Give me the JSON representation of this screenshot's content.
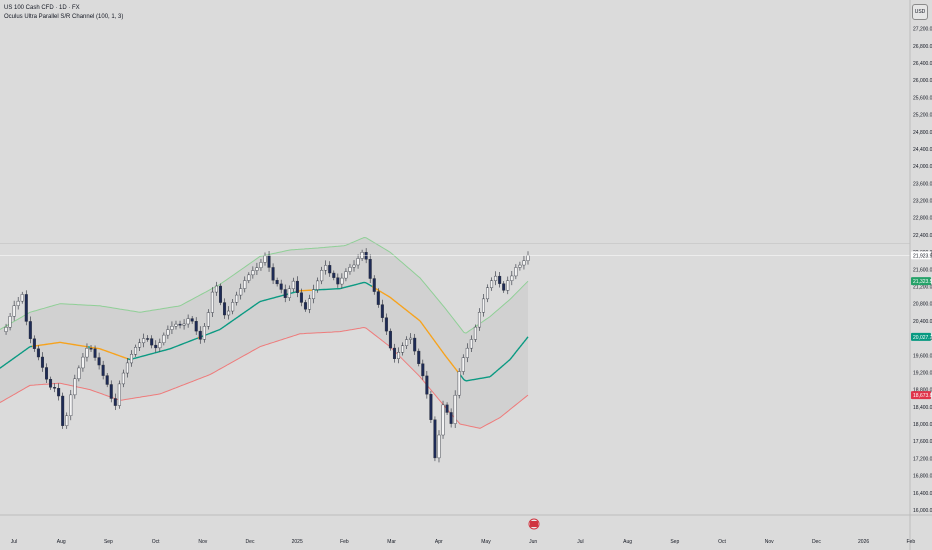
{
  "header": {
    "symbol_line": "US 100 Cash CFD · 1D · FX",
    "indicator_line": "Oculus Ultra Parallel S/R Channel (100, 1, 3)",
    "currency": "USD"
  },
  "colors": {
    "background": "#dbdbdb",
    "candle_up": "#f4f4f4",
    "candle_down": "#1e2b56",
    "candle_border": "#2a2e39",
    "upper_band": "#8fcf96",
    "lower_band": "#ee7b7b",
    "midline_above": "#089981",
    "midline_below": "#f7a21b",
    "fill": "#cfcfcf",
    "price_tag": "#ffffff",
    "upper_tag": "#26a269",
    "mid_tag": "#089981",
    "lower_tag": "#e0344a"
  },
  "chart_data": {
    "type": "candlestick",
    "y_axis": {
      "min": 16000,
      "max": 27400,
      "ticks": [
        "27,200.00",
        "26,800.00",
        "26,400.00",
        "26,000.00",
        "25,600.00",
        "25,200.00",
        "24,800.00",
        "24,400.00",
        "24,000.00",
        "23,600.00",
        "23,200.00",
        "22,800.00",
        "22,400.00",
        "22,000.00",
        "21,600.00",
        "21,200.00",
        "20,800.00",
        "20,400.00",
        "20,000.00",
        "19,600.00",
        "19,200.00",
        "18,800.00",
        "18,400.00",
        "18,000.00",
        "17,600.00",
        "17,200.00",
        "16,800.00",
        "16,400.00",
        "16,000.00"
      ]
    },
    "x_axis": {
      "labels": [
        "Jul",
        "Aug",
        "Sep",
        "Oct",
        "Nov",
        "Dec",
        "2025",
        "Feb",
        "Mar",
        "Apr",
        "May",
        "Jun",
        "Jul",
        "Aug",
        "Sep",
        "Oct",
        "Nov",
        "Dec",
        "2026",
        "Feb"
      ]
    },
    "price_tags": [
      {
        "label": "21,923.95",
        "value": 21923.95,
        "kind": "price"
      },
      {
        "label": "21,323.54",
        "value": 21323.54,
        "kind": "upper"
      },
      {
        "label": "20,027.71",
        "value": 20027.71,
        "kind": "mid"
      },
      {
        "label": "18,673.84",
        "value": 18673.84,
        "kind": "lower"
      }
    ],
    "series": [
      {
        "kind": "candles",
        "path": [
          [
            0,
            20100
          ],
          [
            6,
            20250
          ],
          [
            10,
            20500
          ],
          [
            14,
            20750
          ],
          [
            18,
            20850
          ],
          [
            22,
            21050
          ],
          [
            25,
            20600
          ],
          [
            28,
            20100
          ],
          [
            32,
            19900
          ],
          [
            36,
            19650
          ],
          [
            40,
            19500
          ],
          [
            44,
            19200
          ],
          [
            48,
            18950
          ],
          [
            52,
            18800
          ],
          [
            56,
            18850
          ],
          [
            60,
            18550
          ],
          [
            62,
            18100
          ],
          [
            64,
            17700
          ],
          [
            66,
            18100
          ],
          [
            70,
            18600
          ],
          [
            74,
            19000
          ],
          [
            78,
            19250
          ],
          [
            82,
            19500
          ],
          [
            86,
            19750
          ],
          [
            90,
            19800
          ],
          [
            94,
            19600
          ],
          [
            98,
            19400
          ],
          [
            102,
            19300
          ],
          [
            104,
            19000
          ],
          [
            108,
            18900
          ],
          [
            110,
            18750
          ],
          [
            112,
            18500
          ],
          [
            114,
            18300
          ],
          [
            116,
            18500
          ],
          [
            118,
            18850
          ],
          [
            122,
            19100
          ],
          [
            126,
            19350
          ],
          [
            130,
            19550
          ],
          [
            134,
            19750
          ],
          [
            138,
            19850
          ],
          [
            142,
            19950
          ],
          [
            146,
            20050
          ],
          [
            150,
            19900
          ],
          [
            154,
            19750
          ],
          [
            158,
            19800
          ],
          [
            162,
            20000
          ],
          [
            166,
            20150
          ],
          [
            170,
            20250
          ],
          [
            174,
            20300
          ],
          [
            178,
            20350
          ],
          [
            182,
            20250
          ],
          [
            186,
            20400
          ],
          [
            190,
            20500
          ],
          [
            194,
            20300
          ],
          [
            198,
            20050
          ],
          [
            200,
            19950
          ],
          [
            204,
            20250
          ],
          [
            208,
            20550
          ],
          [
            212,
            21050
          ],
          [
            216,
            21250
          ],
          [
            220,
            20900
          ],
          [
            222,
            20600
          ],
          [
            226,
            20500
          ],
          [
            230,
            20700
          ],
          [
            234,
            20900
          ],
          [
            238,
            21050
          ],
          [
            242,
            21200
          ],
          [
            246,
            21400
          ],
          [
            250,
            21500
          ],
          [
            254,
            21600
          ],
          [
            258,
            21650
          ],
          [
            262,
            21800
          ],
          [
            266,
            21950
          ],
          [
            268,
            21800
          ],
          [
            270,
            21500
          ],
          [
            274,
            21300
          ],
          [
            278,
            21250
          ],
          [
            282,
            21100
          ],
          [
            286,
            20900
          ],
          [
            290,
            21200
          ],
          [
            294,
            21350
          ],
          [
            298,
            21000
          ],
          [
            302,
            20800
          ],
          [
            306,
            20650
          ],
          [
            310,
            20950
          ],
          [
            314,
            21150
          ],
          [
            318,
            21350
          ],
          [
            322,
            21600
          ],
          [
            326,
            21700
          ],
          [
            330,
            21500
          ],
          [
            334,
            21400
          ],
          [
            338,
            21250
          ],
          [
            342,
            21400
          ],
          [
            346,
            21550
          ],
          [
            350,
            21650
          ],
          [
            354,
            21700
          ],
          [
            358,
            21850
          ],
          [
            362,
            22000
          ],
          [
            366,
            21850
          ],
          [
            370,
            21400
          ],
          [
            374,
            21100
          ],
          [
            378,
            20800
          ],
          [
            382,
            20500
          ],
          [
            386,
            20200
          ],
          [
            390,
            19800
          ],
          [
            394,
            19500
          ],
          [
            398,
            19650
          ],
          [
            402,
            19800
          ],
          [
            406,
            19950
          ],
          [
            410,
            20050
          ],
          [
            414,
            19750
          ],
          [
            418,
            19450
          ],
          [
            422,
            19200
          ],
          [
            426,
            18800
          ],
          [
            430,
            18300
          ],
          [
            434,
            17400
          ],
          [
            436,
            17000
          ],
          [
            438,
            17400
          ],
          [
            440,
            18100
          ],
          [
            442,
            18600
          ],
          [
            444,
            18300
          ],
          [
            446,
            18000
          ],
          [
            448,
            18500
          ],
          [
            450,
            18150
          ],
          [
            452,
            17900
          ],
          [
            454,
            18350
          ],
          [
            456,
            18900
          ],
          [
            460,
            19300
          ],
          [
            464,
            19600
          ],
          [
            468,
            19800
          ],
          [
            472,
            20000
          ],
          [
            476,
            20300
          ],
          [
            480,
            20650
          ],
          [
            484,
            20950
          ],
          [
            488,
            21200
          ],
          [
            492,
            21350
          ],
          [
            496,
            21450
          ],
          [
            500,
            21250
          ],
          [
            504,
            21100
          ],
          [
            508,
            21350
          ],
          [
            512,
            21450
          ],
          [
            516,
            21650
          ],
          [
            520,
            21700
          ],
          [
            524,
            21800
          ],
          [
            528,
            21924
          ]
        ]
      },
      {
        "kind": "upper",
        "path": [
          [
            0,
            20200
          ],
          [
            30,
            20600
          ],
          [
            60,
            20800
          ],
          [
            100,
            20750
          ],
          [
            140,
            20600
          ],
          [
            180,
            20750
          ],
          [
            220,
            21250
          ],
          [
            260,
            21900
          ],
          [
            290,
            22050
          ],
          [
            320,
            22100
          ],
          [
            345,
            22150
          ],
          [
            365,
            22350
          ],
          [
            390,
            22000
          ],
          [
            420,
            21400
          ],
          [
            445,
            20700
          ],
          [
            465,
            20100
          ],
          [
            490,
            20500
          ],
          [
            510,
            20900
          ],
          [
            528,
            21324
          ]
        ]
      },
      {
        "kind": "mid",
        "path": [
          [
            0,
            19300
          ],
          [
            30,
            19800
          ],
          [
            60,
            19900
          ],
          [
            100,
            19750
          ],
          [
            130,
            19500
          ],
          [
            170,
            19750
          ],
          [
            220,
            20200
          ],
          [
            260,
            20850
          ],
          [
            300,
            21100
          ],
          [
            340,
            21150
          ],
          [
            365,
            21300
          ],
          [
            390,
            20950
          ],
          [
            420,
            20400
          ],
          [
            445,
            19600
          ],
          [
            465,
            19000
          ],
          [
            490,
            19100
          ],
          [
            510,
            19500
          ],
          [
            528,
            20028
          ]
        ]
      },
      {
        "kind": "lower",
        "path": [
          [
            0,
            18500
          ],
          [
            30,
            18900
          ],
          [
            60,
            18950
          ],
          [
            90,
            18800
          ],
          [
            120,
            18550
          ],
          [
            160,
            18700
          ],
          [
            210,
            19150
          ],
          [
            260,
            19800
          ],
          [
            300,
            20100
          ],
          [
            340,
            20150
          ],
          [
            365,
            20250
          ],
          [
            390,
            19800
          ],
          [
            420,
            19100
          ],
          [
            445,
            18400
          ],
          [
            460,
            18000
          ],
          [
            480,
            17900
          ],
          [
            500,
            18150
          ],
          [
            528,
            18674
          ]
        ]
      }
    ]
  }
}
